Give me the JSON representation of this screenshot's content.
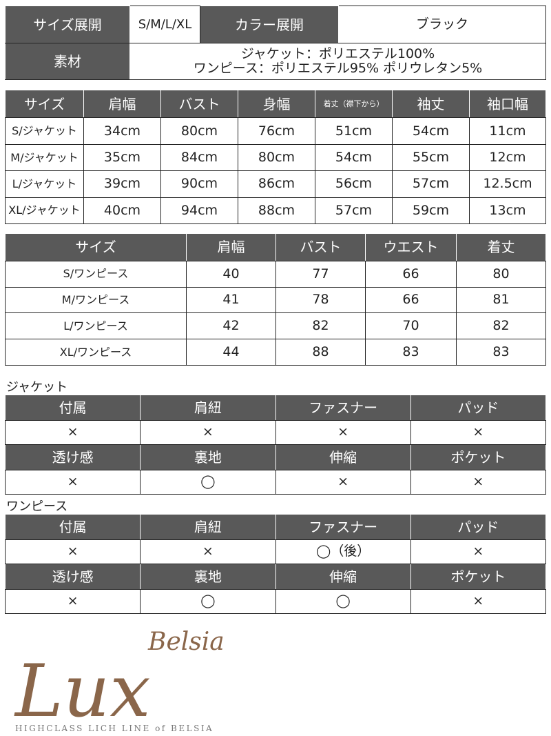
{
  "info": {
    "size_label": "サイズ展開",
    "size_value": "S/M/L/XL",
    "color_label": "カラー展開",
    "color_value": "ブラック",
    "material_label": "素材",
    "material_lines": [
      "ジャケット：ポリエステル100%",
      "ワンピース：ポリエステル95% ポリウレタン5%"
    ]
  },
  "jacket_sizes": {
    "headers": [
      "サイズ",
      "肩幅",
      "バスト",
      "身幅",
      "着丈（襟下から）",
      "袖丈",
      "袖口幅"
    ],
    "rows": [
      [
        "S/ジャケット",
        "34cm",
        "80cm",
        "76cm",
        "51cm",
        "54cm",
        "11cm"
      ],
      [
        "M/ジャケット",
        "35cm",
        "84cm",
        "80cm",
        "54cm",
        "55cm",
        "12cm"
      ],
      [
        "L/ジャケット",
        "39cm",
        "90cm",
        "86cm",
        "56cm",
        "57cm",
        "12.5cm"
      ],
      [
        "XL/ジャケット",
        "40cm",
        "94cm",
        "88cm",
        "57cm",
        "59cm",
        "13cm"
      ]
    ]
  },
  "dress_sizes": {
    "headers": [
      "サイズ",
      "肩幅",
      "バスト",
      "ウエスト",
      "着丈"
    ],
    "rows": [
      [
        "S/ワンピース",
        "40",
        "77",
        "66",
        "80"
      ],
      [
        "M/ワンピース",
        "41",
        "78",
        "66",
        "81"
      ],
      [
        "L/ワンピース",
        "42",
        "82",
        "70",
        "82"
      ],
      [
        "XL/ワンピース",
        "44",
        "88",
        "83",
        "83"
      ]
    ]
  },
  "jacket_features": {
    "title": "ジャケット",
    "rows": [
      [
        "付属",
        "肩紐",
        "ファスナー",
        "パッド"
      ],
      [
        "×",
        "×",
        "×",
        "×"
      ],
      [
        "透け感",
        "裏地",
        "伸縮",
        "ポケット"
      ],
      [
        "×",
        "◯",
        "×",
        "×"
      ]
    ]
  },
  "dress_features": {
    "title": "ワンピース",
    "rows": [
      [
        "付属",
        "肩紐",
        "ファスナー",
        "パッド"
      ],
      [
        "×",
        "×",
        "◯（後）",
        "×"
      ],
      [
        "透け感",
        "裏地",
        "伸縮",
        "ポケット"
      ],
      [
        "×",
        "◯",
        "◯",
        "×"
      ]
    ]
  },
  "logo": {
    "main": "Lux",
    "sub": "Belsia",
    "tagline": "HIGHCLASS LICH LINE of BELSIA",
    "color": "#8a664a"
  },
  "colors": {
    "header_bg": "#595959"
  }
}
